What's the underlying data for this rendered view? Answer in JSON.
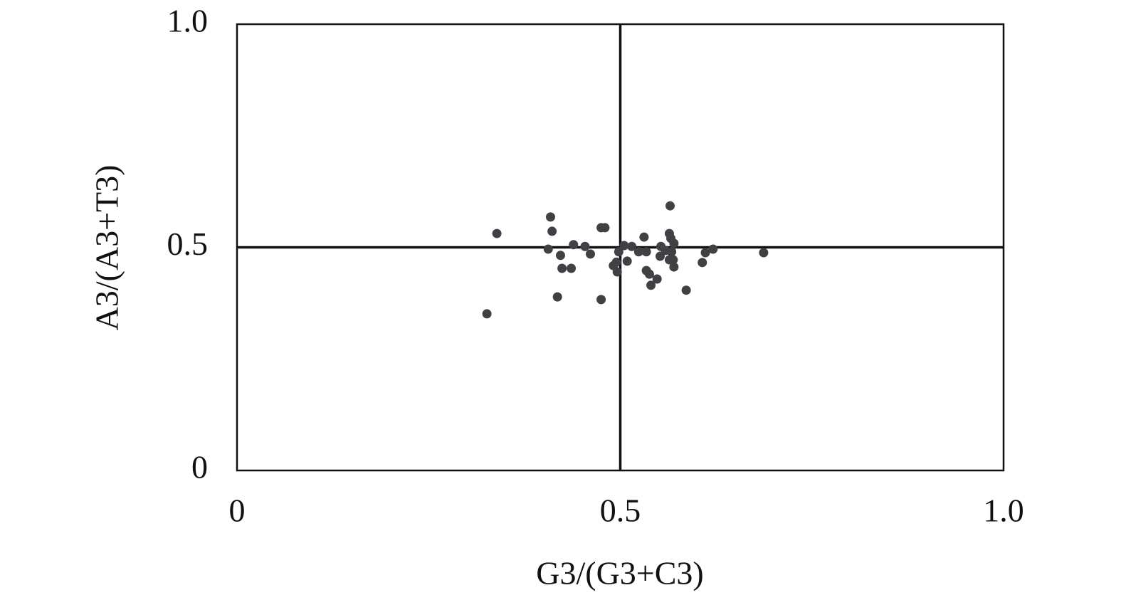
{
  "chart_data": {
    "type": "scatter",
    "xlabel": "G3/(G3+C3)",
    "ylabel": "A3/(A3+T3)",
    "x": [
      0.326,
      0.339,
      0.409,
      0.411,
      0.406,
      0.418,
      0.422,
      0.424,
      0.436,
      0.439,
      0.454,
      0.461,
      0.475,
      0.48,
      0.475,
      0.491,
      0.495,
      0.496,
      0.498,
      0.505,
      0.509,
      0.515,
      0.524,
      0.531,
      0.534,
      0.534,
      0.538,
      0.54,
      0.548,
      0.552,
      0.553,
      0.559,
      0.564,
      0.565,
      0.566,
      0.564,
      0.567,
      0.57,
      0.57,
      0.569,
      0.586,
      0.607,
      0.611,
      0.621,
      0.687
    ],
    "values": [
      0.351,
      0.531,
      0.568,
      0.536,
      0.496,
      0.389,
      0.482,
      0.453,
      0.453,
      0.506,
      0.502,
      0.485,
      0.544,
      0.544,
      0.383,
      0.459,
      0.467,
      0.445,
      0.49,
      0.504,
      0.469,
      0.502,
      0.49,
      0.523,
      0.49,
      0.448,
      0.44,
      0.415,
      0.429,
      0.48,
      0.502,
      0.493,
      0.531,
      0.593,
      0.52,
      0.472,
      0.49,
      0.509,
      0.456,
      0.472,
      0.404,
      0.466,
      0.488,
      0.496,
      0.488
    ],
    "color": "#404045",
    "xlim": [
      0,
      1
    ],
    "ylim": [
      0,
      1
    ],
    "xticks": [
      0,
      0.5,
      {
        "value": 1,
        "label": "1.0"
      }
    ],
    "yticks": [
      0,
      0.5,
      {
        "value": 1,
        "label": "1.0"
      }
    ],
    "hlines": [
      0.5
    ],
    "vlines": [
      0.5
    ]
  }
}
